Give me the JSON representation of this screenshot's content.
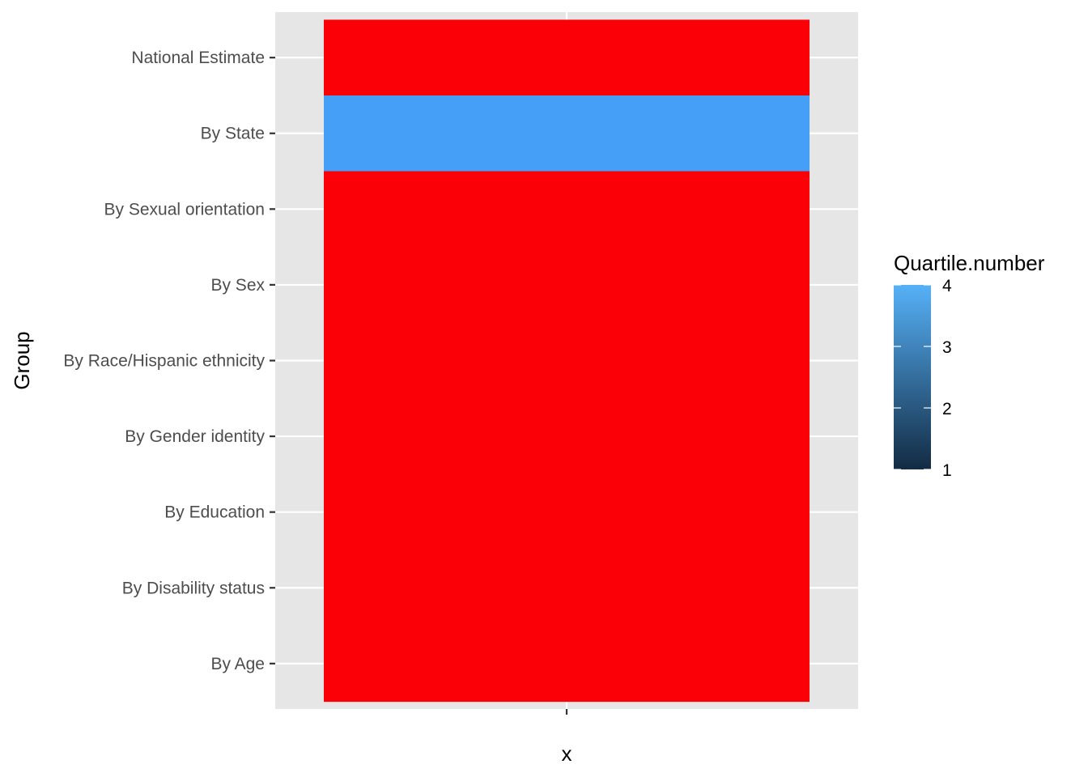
{
  "chart_data": {
    "type": "heatmap",
    "categories": [
      "National Estimate",
      "By State",
      "By Sexual orientation",
      "By Sex",
      "By Race/Hispanic ethnicity",
      "By Gender identity",
      "By Education",
      "By Disability status",
      "By Age"
    ],
    "fill_colors": [
      "#fb0007",
      "#469ff7",
      "#fb0007",
      "#fb0007",
      "#fb0007",
      "#fb0007",
      "#fb0007",
      "#fb0007",
      "#fb0007"
    ],
    "xlabel": "x",
    "ylabel": "Group",
    "x_tick_labels": [
      ""
    ],
    "grid": true,
    "legend": {
      "title": "Quartile.number",
      "position": "right",
      "range": [
        1,
        4
      ],
      "ticks": [
        1,
        2,
        3,
        4
      ],
      "low_color": "#132b43",
      "high_color": "#56b1f7"
    }
  },
  "colors": {
    "panel": "#e6e6e6",
    "grid": "#ffffff",
    "tick": "#333333"
  }
}
